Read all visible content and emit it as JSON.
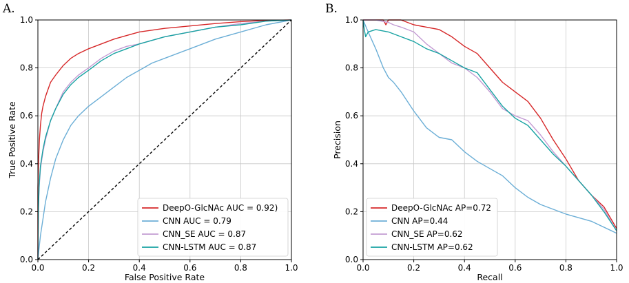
{
  "colors": {
    "DeepO-GlcNAc": "#d62728",
    "CNN": "#6baed6",
    "CNN_SE": "#c39bd3",
    "CNN-LSTM": "#17a2a2",
    "chance": "#000000"
  },
  "chart_data": [
    {
      "id": "roc",
      "type": "line",
      "panel_label": "A.",
      "title": "",
      "xlabel": "False Positive Rate",
      "ylabel": "True Positive Rate",
      "xlim": [
        0,
        1
      ],
      "ylim": [
        0,
        1
      ],
      "xticks": [
        "0.0",
        "0.2",
        "0.4",
        "0.6",
        "0.8",
        "1.0"
      ],
      "yticks": [
        "0.0",
        "0.2",
        "0.4",
        "0.6",
        "0.8",
        "1.0"
      ],
      "grid": true,
      "legend_position": "bottom-right",
      "series": [
        {
          "name": "DeepO-GlcNAc",
          "legend": "DeepO-GlcNAc AUC = 0.92)",
          "color_key": "DeepO-GlcNAc",
          "x": [
            0,
            0,
            0.003,
            0.006,
            0.01,
            0.015,
            0.02,
            0.03,
            0.04,
            0.05,
            0.07,
            0.1,
            0.13,
            0.16,
            0.2,
            0.25,
            0.3,
            0.35,
            0.4,
            0.5,
            0.6,
            0.7,
            0.8,
            0.85,
            0.9,
            1.0
          ],
          "y": [
            0,
            0.3,
            0.42,
            0.5,
            0.56,
            0.61,
            0.64,
            0.68,
            0.71,
            0.74,
            0.77,
            0.81,
            0.84,
            0.86,
            0.88,
            0.9,
            0.92,
            0.935,
            0.95,
            0.965,
            0.975,
            0.985,
            0.993,
            0.996,
            0.998,
            1.0
          ]
        },
        {
          "name": "CNN",
          "legend": "CNN AUC = 0.79",
          "color_key": "CNN",
          "x": [
            0,
            0.005,
            0.01,
            0.02,
            0.03,
            0.05,
            0.07,
            0.1,
            0.13,
            0.16,
            0.2,
            0.25,
            0.3,
            0.35,
            0.4,
            0.45,
            0.5,
            0.6,
            0.7,
            0.8,
            0.9,
            1.0
          ],
          "y": [
            0,
            0.05,
            0.1,
            0.17,
            0.24,
            0.34,
            0.42,
            0.5,
            0.56,
            0.6,
            0.64,
            0.68,
            0.72,
            0.76,
            0.79,
            0.82,
            0.84,
            0.88,
            0.92,
            0.95,
            0.98,
            1.0
          ]
        },
        {
          "name": "CNN_SE",
          "legend": "CNN_SE AUC = 0.87",
          "color_key": "CNN_SE",
          "x": [
            0,
            0.002,
            0.005,
            0.01,
            0.02,
            0.03,
            0.05,
            0.07,
            0.1,
            0.13,
            0.16,
            0.2,
            0.25,
            0.3,
            0.35,
            0.4,
            0.5,
            0.6,
            0.7,
            0.8,
            0.9,
            1.0
          ],
          "y": [
            0,
            0.2,
            0.3,
            0.38,
            0.45,
            0.5,
            0.58,
            0.63,
            0.7,
            0.74,
            0.77,
            0.8,
            0.84,
            0.87,
            0.89,
            0.9,
            0.93,
            0.95,
            0.97,
            0.985,
            0.995,
            1.0
          ]
        },
        {
          "name": "CNN-LSTM",
          "legend": "CNN-LSTM AUC = 0.87",
          "color_key": "CNN-LSTM",
          "x": [
            0,
            0.002,
            0.005,
            0.01,
            0.02,
            0.03,
            0.05,
            0.07,
            0.1,
            0.13,
            0.16,
            0.2,
            0.25,
            0.3,
            0.35,
            0.4,
            0.5,
            0.6,
            0.7,
            0.8,
            0.9,
            1.0
          ],
          "y": [
            0,
            0.21,
            0.31,
            0.39,
            0.46,
            0.51,
            0.58,
            0.63,
            0.69,
            0.73,
            0.76,
            0.79,
            0.83,
            0.86,
            0.88,
            0.9,
            0.93,
            0.95,
            0.97,
            0.98,
            0.995,
            1.0
          ]
        },
        {
          "name": "chance",
          "legend": "",
          "color_key": "chance",
          "dashed": true,
          "x": [
            0,
            1
          ],
          "y": [
            0,
            1
          ]
        }
      ]
    },
    {
      "id": "pr",
      "type": "line",
      "panel_label": "B.",
      "title": "",
      "xlabel": "Recall",
      "ylabel": "Precision",
      "xlim": [
        0,
        1
      ],
      "ylim": [
        0,
        1
      ],
      "xticks": [
        "0.0",
        "0.2",
        "0.4",
        "0.6",
        "0.8",
        "1.0"
      ],
      "yticks": [
        "0.0",
        "0.2",
        "0.4",
        "0.6",
        "0.8",
        "1.0"
      ],
      "grid": true,
      "legend_position": "bottom-left",
      "series": [
        {
          "name": "DeepO-GlcNAc",
          "legend": "DeepO-GlcNAc AP=0.72",
          "color_key": "DeepO-GlcNAc",
          "x": [
            0,
            0.08,
            0.09,
            0.1,
            0.15,
            0.2,
            0.25,
            0.3,
            0.35,
            0.4,
            0.45,
            0.5,
            0.55,
            0.6,
            0.65,
            0.7,
            0.75,
            0.8,
            0.85,
            0.9,
            0.95,
            1.0
          ],
          "y": [
            1.0,
            1.0,
            0.98,
            1.0,
            1.0,
            0.98,
            0.97,
            0.96,
            0.93,
            0.89,
            0.86,
            0.8,
            0.74,
            0.7,
            0.66,
            0.59,
            0.5,
            0.42,
            0.33,
            0.27,
            0.22,
            0.13
          ]
        },
        {
          "name": "CNN",
          "legend": "CNN AP=0.44",
          "color_key": "CNN",
          "x": [
            0,
            0.02,
            0.05,
            0.08,
            0.1,
            0.12,
            0.15,
            0.2,
            0.25,
            0.3,
            0.35,
            0.4,
            0.45,
            0.5,
            0.55,
            0.6,
            0.65,
            0.7,
            0.8,
            0.9,
            1.0
          ],
          "y": [
            1.0,
            0.95,
            0.88,
            0.8,
            0.76,
            0.74,
            0.7,
            0.62,
            0.55,
            0.51,
            0.5,
            0.45,
            0.41,
            0.38,
            0.35,
            0.3,
            0.26,
            0.23,
            0.19,
            0.16,
            0.11
          ]
        },
        {
          "name": "CNN_SE",
          "legend": "CNN_SE AP=0.62",
          "color_key": "CNN_SE",
          "x": [
            0,
            0.05,
            0.1,
            0.12,
            0.15,
            0.2,
            0.25,
            0.3,
            0.35,
            0.4,
            0.45,
            0.5,
            0.55,
            0.6,
            0.65,
            0.7,
            0.75,
            0.8,
            0.85,
            0.9,
            0.95,
            1.0
          ],
          "y": [
            1.0,
            1.0,
            0.99,
            0.98,
            0.97,
            0.95,
            0.9,
            0.86,
            0.82,
            0.8,
            0.76,
            0.7,
            0.63,
            0.6,
            0.58,
            0.52,
            0.45,
            0.39,
            0.33,
            0.27,
            0.21,
            0.12
          ]
        },
        {
          "name": "CNN-LSTM",
          "legend": "CNN-LSTM AP=0.62",
          "color_key": "CNN-LSTM",
          "x": [
            0,
            0.005,
            0.01,
            0.02,
            0.05,
            0.1,
            0.15,
            0.2,
            0.25,
            0.3,
            0.35,
            0.4,
            0.45,
            0.5,
            0.55,
            0.6,
            0.65,
            0.7,
            0.75,
            0.8,
            0.85,
            0.9,
            0.95,
            1.0
          ],
          "y": [
            1.0,
            0.96,
            0.93,
            0.95,
            0.96,
            0.95,
            0.93,
            0.91,
            0.88,
            0.86,
            0.83,
            0.8,
            0.78,
            0.71,
            0.64,
            0.59,
            0.56,
            0.5,
            0.44,
            0.39,
            0.33,
            0.27,
            0.2,
            0.12
          ]
        }
      ]
    }
  ]
}
